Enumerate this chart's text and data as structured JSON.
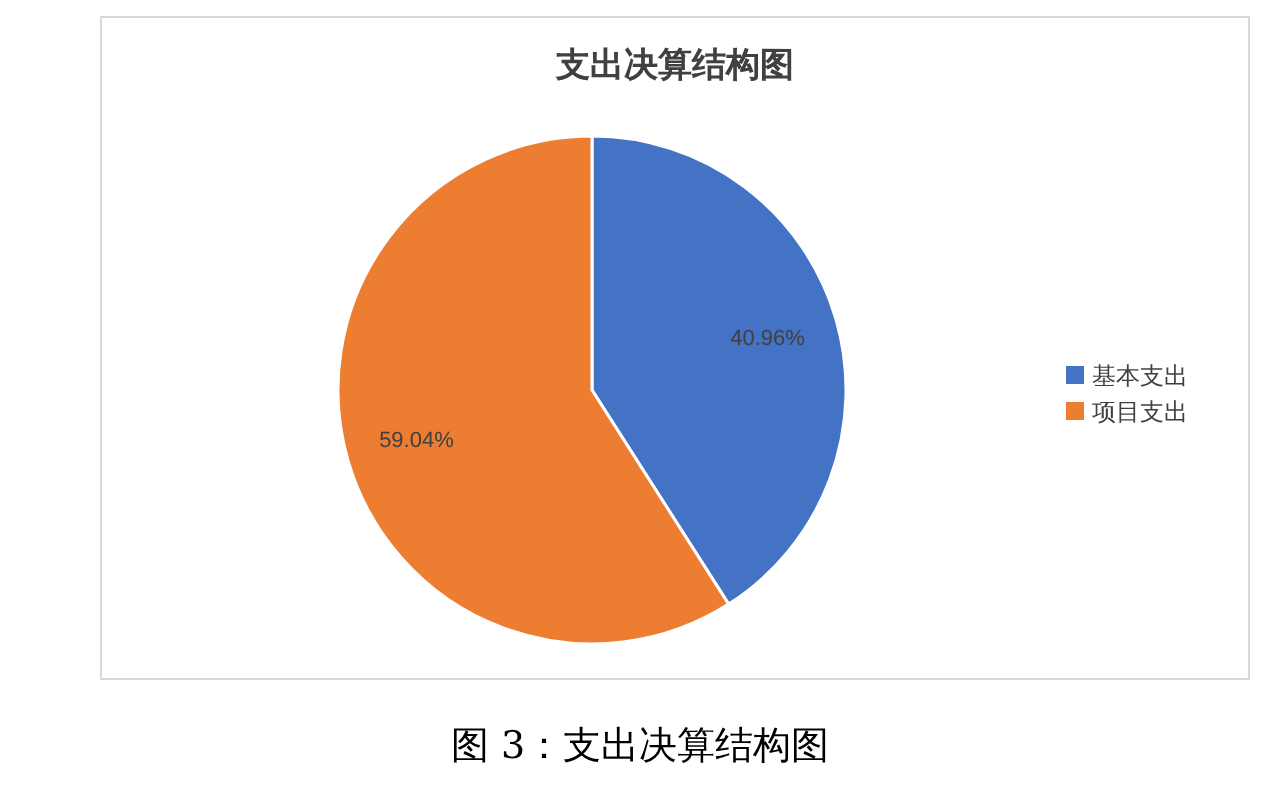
{
  "chart_data": {
    "type": "pie",
    "title": "支出决算结构图",
    "categories": [
      "基本支出",
      "项目支出"
    ],
    "values": [
      40.96,
      59.04
    ],
    "colors": [
      "#4472c4",
      "#ed7d31"
    ],
    "value_labels": [
      "40.96%",
      "59.04%"
    ],
    "legend": "right",
    "annotations": [
      "图 3：支出决算结构图"
    ]
  }
}
